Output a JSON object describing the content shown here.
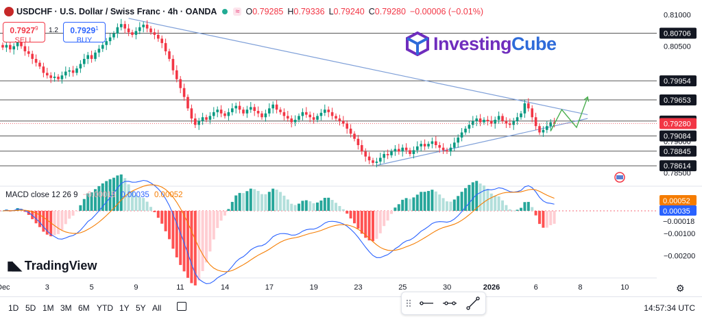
{
  "header": {
    "symbol": "USDCHF · U.S. Dollar / Swiss Franc · 4h · OANDA",
    "o_label": "O",
    "o_value": "0.79285",
    "h_label": "H",
    "h_value": "0.79336",
    "l_label": "L",
    "l_value": "0.79240",
    "c_label": "C",
    "c_value": "0.79280",
    "change": "−0.00006 (−0.01%)",
    "wave_glyph": "≈"
  },
  "trade": {
    "sell_price": "0.7927",
    "sell_sup": "9",
    "sell_label": "SELL",
    "spread": "1.2",
    "buy_price": "0.7929",
    "buy_sup": "1",
    "buy_label": "BUY"
  },
  "logo": {
    "part1": "Investing",
    "part2": "Cube"
  },
  "macd": {
    "title": "MACD close 12 26 9",
    "hist_value": "−0.00018",
    "macd_value": "0.00035",
    "signal_value": "0.00052"
  },
  "watermark": "TradingView",
  "timeframes": [
    "1D",
    "5D",
    "1M",
    "3M",
    "6M",
    "YTD",
    "1Y",
    "5Y",
    "All"
  ],
  "clock": "14:57:34 UTC",
  "colors": {
    "up": "#089981",
    "down": "#f23645",
    "macd": "#2962ff",
    "signal": "#f57c00",
    "trend": "#7e9fd8",
    "projection": "#4caf50"
  },
  "chart_data": {
    "type": "candlestick",
    "price_axis": {
      "ylim": [
        0.784,
        0.811
      ],
      "ticks": [
        "0.81000",
        "0.80500",
        "0.79000",
        "0.78500"
      ],
      "levels": [
        "0.80706",
        "0.79954",
        "0.79653",
        "0.79320",
        "0.79084",
        "0.78845",
        "0.78614"
      ],
      "current": "0.79280"
    },
    "macd_axis": {
      "ylim": [
        -0.0028,
        0.0007
      ],
      "ticks": [
        "−0.00100",
        "−0.00200"
      ],
      "labels": [
        "0.00052",
        "0.00035",
        "−0.00018"
      ]
    },
    "x_ticks": [
      {
        "i": 0,
        "label": "Dec"
      },
      {
        "i": 12,
        "label": "3"
      },
      {
        "i": 24,
        "label": "5"
      },
      {
        "i": 36,
        "label": "9"
      },
      {
        "i": 48,
        "label": "11"
      },
      {
        "i": 60,
        "label": "14"
      },
      {
        "i": 72,
        "label": "17"
      },
      {
        "i": 84,
        "label": "19"
      },
      {
        "i": 96,
        "label": "23"
      },
      {
        "i": 108,
        "label": "25"
      },
      {
        "i": 120,
        "label": "30"
      },
      {
        "i": 132,
        "label": "2026"
      },
      {
        "i": 144,
        "label": "6"
      },
      {
        "i": 156,
        "label": "8"
      },
      {
        "i": 168,
        "label": "10"
      }
    ],
    "closes": [
      0.8048,
      0.8052,
      0.8045,
      0.805,
      0.8056,
      0.805,
      0.8042,
      0.8038,
      0.803,
      0.8024,
      0.8018,
      0.8008,
      0.8004,
      0.8,
      0.8002,
      0.7998,
      0.8004,
      0.801,
      0.8012,
      0.8008,
      0.8015,
      0.8022,
      0.803,
      0.8036,
      0.803,
      0.804,
      0.8046,
      0.8052,
      0.8058,
      0.8064,
      0.807,
      0.808,
      0.8085,
      0.8078,
      0.8072,
      0.8068,
      0.8074,
      0.808,
      0.8084,
      0.8078,
      0.8072,
      0.8068,
      0.8062,
      0.8055,
      0.8042,
      0.803,
      0.8012,
      0.7998,
      0.7984,
      0.797,
      0.7952,
      0.7936,
      0.7926,
      0.7932,
      0.7938,
      0.7934,
      0.794,
      0.7946,
      0.795,
      0.7944,
      0.794,
      0.7946,
      0.7952,
      0.7956,
      0.795,
      0.7944,
      0.795,
      0.7954,
      0.7948,
      0.7944,
      0.7938,
      0.7944,
      0.7952,
      0.7958,
      0.795,
      0.7946,
      0.794,
      0.7936,
      0.793,
      0.7934,
      0.794,
      0.7946,
      0.7942,
      0.7938,
      0.7934,
      0.794,
      0.7945,
      0.795,
      0.7946,
      0.794,
      0.7936,
      0.7932,
      0.7928,
      0.792,
      0.7912,
      0.7904,
      0.7894,
      0.7884,
      0.7876,
      0.787,
      0.7866,
      0.7868,
      0.7874,
      0.788,
      0.7878,
      0.7884,
      0.7888,
      0.7884,
      0.789,
      0.7886,
      0.788,
      0.7886,
      0.7892,
      0.7896,
      0.7892,
      0.7896,
      0.79,
      0.7894,
      0.789,
      0.7886,
      0.7884,
      0.789,
      0.7898,
      0.7906,
      0.7914,
      0.792,
      0.7926,
      0.7932,
      0.7936,
      0.793,
      0.7934,
      0.7932,
      0.7928,
      0.7934,
      0.794,
      0.7932,
      0.7928,
      0.7926,
      0.7932,
      0.7938,
      0.7944,
      0.796,
      0.7952,
      0.7938,
      0.7924,
      0.7914,
      0.7918,
      0.7924,
      0.793,
      0.7928
    ],
    "projection": [
      [
        148,
        0.7916
      ],
      [
        151,
        0.795
      ],
      [
        155,
        0.7922
      ],
      [
        158,
        0.797
      ]
    ],
    "trendlines": [
      {
        "from": [
          34,
          0.8094
        ],
        "to": [
          158,
          0.7942
        ]
      },
      {
        "from": [
          101,
          0.7862
        ],
        "to": [
          158,
          0.7936
        ]
      }
    ]
  }
}
